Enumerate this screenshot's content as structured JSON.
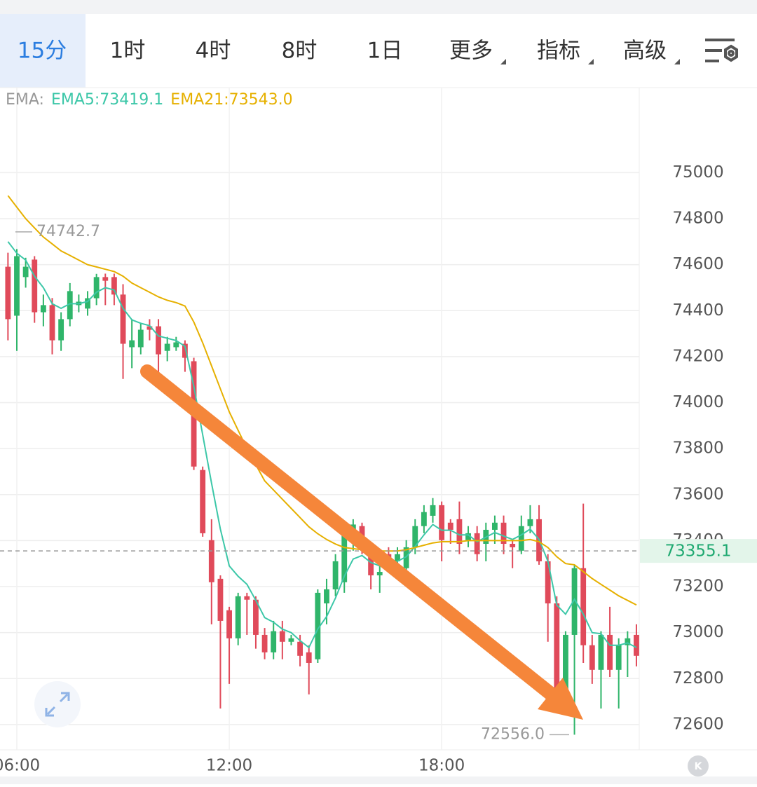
{
  "tabs": [
    "15分",
    "1时",
    "4时",
    "8时",
    "1日",
    "更多",
    "指标",
    "高级"
  ],
  "chart_data": {
    "type": "candlestick",
    "indicator_label": "EMA:",
    "indicator_values": [
      {
        "text": "EMA5:73419.1",
        "color": "#3cc7a8"
      },
      {
        "text": "EMA21:73543.0",
        "color": "#e6b000"
      }
    ],
    "x": [
      5.75,
      6,
      6.25,
      6.5,
      6.75,
      7,
      7.25,
      7.5,
      7.75,
      8,
      8.25,
      8.5,
      8.75,
      9,
      9.25,
      9.5,
      9.75,
      10,
      10.25,
      10.5,
      10.75,
      11,
      11.25,
      11.5,
      11.75,
      12,
      12.25,
      12.5,
      12.75,
      13,
      13.25,
      13.5,
      13.75,
      14,
      14.25,
      14.5,
      14.75,
      15,
      15.25,
      15.5,
      15.75,
      16,
      16.25,
      16.5,
      16.75,
      17,
      17.25,
      17.5,
      17.75,
      18,
      18.25,
      18.5,
      18.75,
      19,
      19.25,
      19.5,
      19.75,
      20,
      20.25,
      20.5,
      20.75,
      21,
      21.25,
      21.5,
      21.75,
      22,
      22.25,
      22.5,
      22.75,
      23,
      23.25,
      23.5
    ],
    "open": [
      74591,
      74378,
      74546,
      74622,
      74393,
      74424,
      74271,
      74363,
      74424,
      74409,
      74454,
      74546,
      74546,
      74470,
      74241,
      74241,
      74332,
      74332,
      74225,
      74241,
      74256,
      74180,
      73707,
      73402,
      73234,
      73097,
      72975,
      73158,
      73143,
      72990,
      72914,
      73006,
      72960,
      72960,
      72914,
      72884,
      73127,
      73188,
      73219,
      73402,
      73463,
      73371,
      73249,
      73341,
      73310,
      73280,
      73371,
      73463,
      73508,
      73554,
      73478,
      73493,
      73402,
      73432,
      73386,
      73447,
      73478,
      73386,
      73356,
      73463,
      73493,
      73310,
      73127,
      72746,
      72990,
      73280,
      72945,
      72838,
      72990,
      72838,
      72945,
      72990
    ],
    "high": [
      74652,
      74668,
      74630,
      74637,
      74470,
      74455,
      74393,
      74520,
      74470,
      74485,
      74560,
      74561,
      74561,
      74515,
      74363,
      74347,
      74363,
      74363,
      74286,
      74286,
      74271,
      74195,
      73722,
      73493,
      73249,
      73112,
      73173,
      73173,
      73158,
      73020,
      73051,
      73051,
      72990,
      72990,
      72945,
      73188,
      73234,
      73341,
      73463,
      73493,
      73478,
      73386,
      73295,
      73371,
      73371,
      73402,
      73493,
      73554,
      73585,
      73570,
      73493,
      73570,
      73463,
      73463,
      73478,
      73509,
      73509,
      73402,
      73509,
      73554,
      73554,
      73341,
      73158,
      73006,
      73295,
      73561,
      72990,
      73006,
      73112,
      72975,
      73006,
      73036
    ],
    "low": [
      74271,
      74225,
      74500,
      74347,
      74332,
      74210,
      74225,
      74332,
      74393,
      74378,
      74424,
      74424,
      74424,
      74103,
      74150,
      74210,
      74271,
      74134,
      74180,
      74225,
      74134,
      73707,
      73417,
      73036,
      72670,
      72777,
      72945,
      72990,
      72930,
      72884,
      72884,
      72884,
      72945,
      72853,
      72731,
      72868,
      73036,
      73158,
      73173,
      73356,
      73341,
      73188,
      73173,
      73264,
      73264,
      73249,
      73341,
      73432,
      73478,
      73310,
      73386,
      73341,
      73371,
      73310,
      73310,
      73386,
      73341,
      73280,
      73341,
      73432,
      73295,
      72960,
      72731,
      72731,
      72556,
      72868,
      72777,
      72670,
      72807,
      72670,
      72807,
      72853
    ],
    "close": [
      74363,
      74637,
      74591,
      74393,
      74424,
      74271,
      74363,
      74485,
      74439,
      74454,
      74546,
      74530,
      74470,
      74256,
      74271,
      74317,
      74317,
      74210,
      74256,
      74262,
      74195,
      73722,
      73432,
      73219,
      73051,
      72975,
      73158,
      73143,
      72990,
      72914,
      73006,
      72960,
      72975,
      72899,
      72868,
      73173,
      73188,
      73310,
      73432,
      73470,
      73371,
      73249,
      73264,
      73310,
      73341,
      73371,
      73463,
      73524,
      73554,
      73402,
      73447,
      73386,
      73432,
      73341,
      73447,
      73478,
      73386,
      73371,
      73463,
      73493,
      73310,
      73127,
      72746,
      72990,
      73280,
      72945,
      72838,
      72990,
      72838,
      72945,
      72975,
      72899
    ],
    "up_color": "#2fb56a",
    "down_color": "#e04a5a",
    "lines": [
      {
        "color": "#3cc7a8",
        "values": [
          74700,
          74650,
          74620,
          74550,
          74500,
          74430,
          74410,
          74430,
          74430,
          74440,
          74480,
          74500,
          74490,
          74410,
          74360,
          74345,
          74335,
          74290,
          74280,
          74270,
          74245,
          74070,
          73860,
          73650,
          73450,
          73290,
          73245,
          73210,
          73140,
          73065,
          73045,
          73015,
          73000,
          72965,
          72935,
          73015,
          73070,
          73150,
          73245,
          73320,
          73335,
          73305,
          73290,
          73295,
          73310,
          73330,
          73375,
          73425,
          73470,
          73445,
          73445,
          73425,
          73425,
          73395,
          73415,
          73435,
          73420,
          73405,
          73425,
          73450,
          73405,
          73310,
          73120,
          73080,
          73145,
          73080,
          73000,
          72995,
          72945,
          72945,
          72955,
          72935
        ]
      },
      {
        "color": "#e6b000",
        "values": [
          74900,
          74850,
          74800,
          74760,
          74720,
          74690,
          74660,
          74640,
          74620,
          74600,
          74590,
          74580,
          74570,
          74550,
          74520,
          74500,
          74480,
          74460,
          74445,
          74435,
          74420,
          74350,
          74260,
          74160,
          74060,
          73960,
          73880,
          73800,
          73730,
          73660,
          73620,
          73580,
          73540,
          73500,
          73460,
          73430,
          73405,
          73385,
          73370,
          73365,
          73360,
          73355,
          73355,
          73355,
          73355,
          73360,
          73370,
          73380,
          73390,
          73395,
          73395,
          73395,
          73400,
          73400,
          73400,
          73400,
          73400,
          73400,
          73400,
          73405,
          73395,
          73370,
          73330,
          73300,
          73295,
          73265,
          73235,
          73210,
          73185,
          73160,
          73140,
          73120
        ]
      }
    ],
    "high_marker": 74742.7,
    "low_marker": {
      "value": 72556,
      "label": "72556.0"
    },
    "last_price": 73355.1,
    "xlim": [
      5.525,
      23.58
    ],
    "ylim": [
      72490,
      75370
    ],
    "xticks": [
      {
        "value": 6,
        "label": "06:00"
      },
      {
        "value": 12,
        "label": "12:00"
      },
      {
        "value": 18,
        "label": "18:00"
      }
    ],
    "yticks": [
      72600,
      72800,
      73000,
      73200,
      73400,
      73600,
      73800,
      74000,
      74200,
      74400,
      74600,
      74800,
      75000
    ],
    "grid": true
  }
}
